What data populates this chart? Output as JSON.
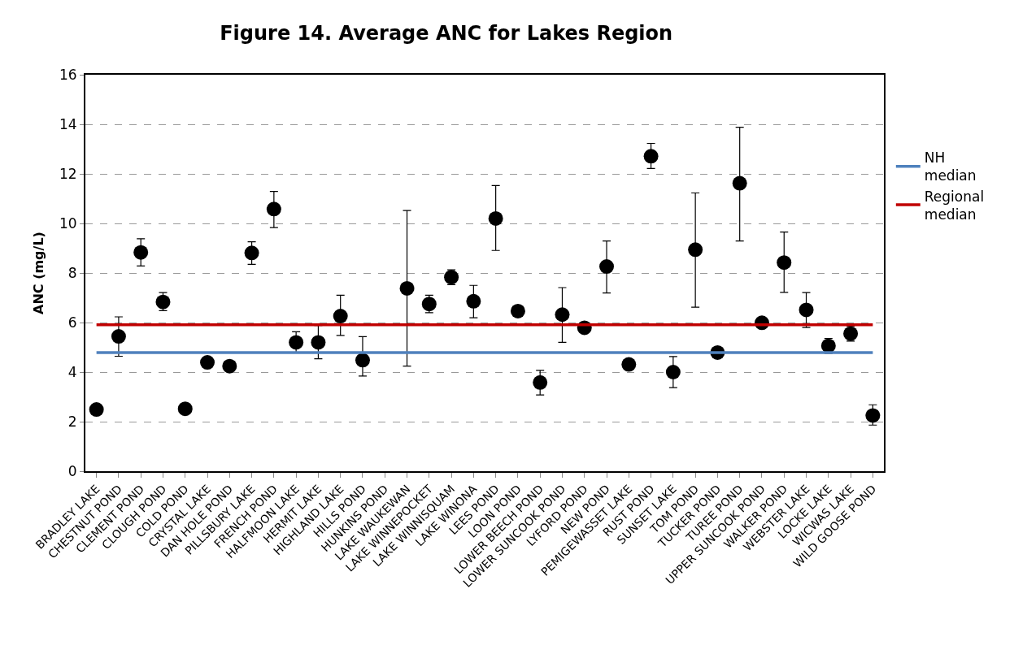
{
  "chart_data": {
    "type": "scatter",
    "title": "Figure 14. Average ANC for Lakes Region",
    "ylabel": "ANC (mg/L)",
    "categories": [
      "BRADLEY LAKE",
      "CHESTNUT POND",
      "CLEMENT POND",
      "CLOUGH POND",
      "COLD POND",
      "CRYSTAL LAKE",
      "DAN HOLE POND",
      "PILLSBURY LAKE",
      "FRENCH POND",
      "HALFMOON LAKE",
      "HERMIT LAKE",
      "HIGHLAND LAKE",
      "HILLS POND",
      "HUNKINS POND",
      "LAKE WAUKEWAN",
      "LAKE WINNEPOCKET",
      "LAKE WINNISQUAM",
      "LAKE WINONA",
      "LEES POND",
      "LOON POND",
      "LOWER BEECH POND",
      "LOWER SUNCOOK POND",
      "LYFORD POND",
      "NEW POND",
      "PEMIGEWASSET LAKE",
      "RUST POND",
      "SUNSET LAKE",
      "TOM POND",
      "TUCKER POND",
      "TUREE POND",
      "UPPER SUNCOOK POND",
      "WALKER POND",
      "WEBSTER LAKE",
      "LOCKE LAKE",
      "WICWAS LAKE",
      "WILD GOOSE POND"
    ],
    "series": [
      {
        "color": "#000000",
        "values": [
          2.49,
          5.44,
          8.83,
          6.83,
          2.52,
          4.39,
          4.24,
          8.81,
          10.58,
          5.2,
          5.2,
          6.26,
          4.48,
          null,
          7.38,
          6.75,
          7.83,
          6.86,
          10.2,
          6.46,
          3.58,
          6.32,
          5.79,
          8.26,
          4.31,
          12.71,
          4.0,
          8.94,
          4.79,
          11.62,
          5.99,
          8.42,
          6.51,
          5.06,
          5.55,
          2.25
        ],
        "errors": [
          null,
          [
            4.64,
            6.23
          ],
          [
            8.28,
            9.38
          ],
          [
            6.48,
            7.21
          ],
          null,
          null,
          null,
          [
            8.35,
            9.26
          ],
          [
            9.83,
            11.29
          ],
          0.43,
          [
            4.54,
            5.88
          ],
          [
            5.48,
            7.1
          ],
          [
            3.84,
            5.43
          ],
          null,
          [
            4.24,
            10.52
          ],
          0.35,
          0.3,
          [
            6.19,
            7.5
          ],
          [
            8.91,
            11.53
          ],
          null,
          [
            3.08,
            4.07
          ],
          [
            5.2,
            7.41
          ],
          null,
          [
            7.19,
            9.29
          ],
          null,
          [
            12.22,
            13.23
          ],
          [
            3.37,
            4.63
          ],
          [
            6.62,
            11.23
          ],
          null,
          [
            9.29,
            13.88
          ],
          null,
          [
            7.22,
            9.65
          ],
          [
            5.8,
            7.21
          ],
          0.3,
          0.3,
          [
            1.86,
            2.68
          ]
        ]
      }
    ],
    "ref_lines": [
      {
        "axis": "y",
        "value": 4.79,
        "label": "NH median",
        "color": "#4f81bd"
      },
      {
        "axis": "y",
        "value": 5.91,
        "label": "Regional median",
        "color": "#c00000"
      }
    ],
    "ylim": [
      0,
      16
    ],
    "yticks": [
      0,
      2,
      4,
      6,
      8,
      10,
      12,
      14,
      16
    ],
    "grid": "y",
    "legend": "right",
    "marker": "circle"
  }
}
